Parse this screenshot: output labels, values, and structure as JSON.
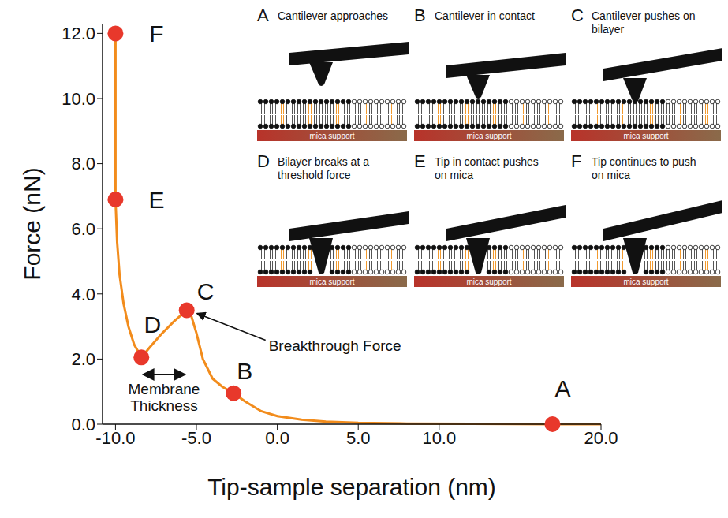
{
  "chart_data": {
    "type": "line",
    "x_label": "Tip-sample separation (nm)",
    "y_label": "Force (nN)",
    "xlim": [
      -10.8,
      20
    ],
    "ylim": [
      0,
      12.3
    ],
    "xticks": [
      {
        "value": -10,
        "label": "-10.0"
      },
      {
        "value": -5,
        "label": "-5.0"
      },
      {
        "value": 0,
        "label": "0.0"
      },
      {
        "value": 5,
        "label": "5.0"
      },
      {
        "value": 10,
        "label": "10.0"
      },
      {
        "value": 20,
        "label": "20.0"
      }
    ],
    "yticks": [
      {
        "value": 0,
        "label": "0.0"
      },
      {
        "value": 2,
        "label": "2.0"
      },
      {
        "value": 4,
        "label": "4.0"
      },
      {
        "value": 6,
        "label": "6.0"
      },
      {
        "value": 8,
        "label": "8.0"
      },
      {
        "value": 10,
        "label": "10.0"
      },
      {
        "value": 12,
        "label": "12.0"
      }
    ],
    "grid": false,
    "color": "#f28c1c",
    "line_style": "solid",
    "x": [
      -10,
      -10,
      -9.9,
      -9.75,
      -9.5,
      -9.2,
      -8.85,
      -8.4,
      -7.9,
      -7.2,
      -6.4,
      -5.6,
      -5.3,
      -5.0,
      -4.6,
      -4.0,
      -3.4,
      -2.7,
      -2.0,
      -1.0,
      0,
      1.5,
      3,
      5,
      8,
      12,
      17,
      20
    ],
    "values": [
      12.0,
      6.9,
      5.6,
      4.6,
      3.7,
      3.0,
      2.45,
      2.05,
      2.35,
      2.75,
      3.15,
      3.5,
      3.3,
      2.8,
      2.0,
      1.4,
      1.15,
      0.95,
      0.7,
      0.4,
      0.25,
      0.14,
      0.08,
      0.04,
      0.02,
      0.01,
      0,
      0
    ],
    "points": {
      "labels": [
        "A",
        "B",
        "C",
        "D",
        "E",
        "F"
      ],
      "x": [
        17,
        -2.7,
        -5.6,
        -8.4,
        -10,
        -10
      ],
      "values": [
        0,
        0.95,
        3.5,
        2.05,
        6.9,
        12.0
      ],
      "color": "#e8382b",
      "marker": "circle"
    },
    "annotations": [
      {
        "text": "Breakthrough Force",
        "points_to": "C"
      },
      {
        "text": "Membrane Thickness",
        "spans": [
          "D",
          "C"
        ]
      }
    ],
    "insets": {
      "support_label": "mica support",
      "panels": [
        {
          "label": "A",
          "caption": "Cantilever approaches"
        },
        {
          "label": "B",
          "caption": "Cantilever in contact"
        },
        {
          "label": "C",
          "caption": "Cantilever pushes on bilayer"
        },
        {
          "label": "D",
          "caption": "Bilayer breaks at a threshold force"
        },
        {
          "label": "E",
          "caption": "Tip in contact pushes on mica"
        },
        {
          "label": "F",
          "caption": "Tip continues to push on mica"
        }
      ]
    }
  }
}
